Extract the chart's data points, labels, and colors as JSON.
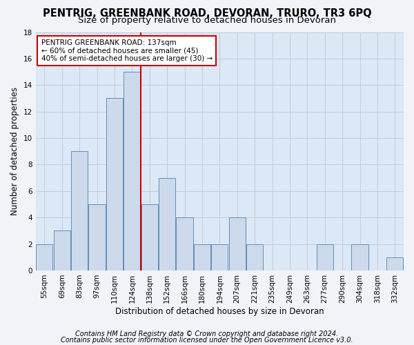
{
  "title1": "PENTRIG, GREENBANK ROAD, DEVORAN, TRURO, TR3 6PQ",
  "title2": "Size of property relative to detached houses in Devoran",
  "xlabel": "Distribution of detached houses by size in Devoran",
  "ylabel": "Number of detached properties",
  "footer1": "Contains HM Land Registry data © Crown copyright and database right 2024.",
  "footer2": "Contains public sector information licensed under the Open Government Licence v3.0.",
  "bin_labels": [
    "55sqm",
    "69sqm",
    "83sqm",
    "97sqm",
    "110sqm",
    "124sqm",
    "138sqm",
    "152sqm",
    "166sqm",
    "180sqm",
    "194sqm",
    "207sqm",
    "221sqm",
    "235sqm",
    "249sqm",
    "263sqm",
    "277sqm",
    "290sqm",
    "304sqm",
    "318sqm",
    "332sqm"
  ],
  "bar_values": [
    2,
    3,
    9,
    5,
    13,
    15,
    5,
    7,
    4,
    2,
    2,
    4,
    2,
    0,
    0,
    0,
    2,
    0,
    2,
    0,
    1
  ],
  "bar_color": "#ccdaeb",
  "bar_edge_color": "#6090bb",
  "highlight_color": "#cc0000",
  "highlight_bin_index": 6,
  "annotation_text": "PENTRIG GREENBANK ROAD: 137sqm\n← 60% of detached houses are smaller (45)\n40% of semi-detached houses are larger (30) →",
  "annotation_box_color": "#ffffff",
  "annotation_border_color": "#cc0000",
  "ylim": [
    0,
    18
  ],
  "yticks": [
    0,
    2,
    4,
    6,
    8,
    10,
    12,
    14,
    16,
    18
  ],
  "grid_color": "#c0ccd8",
  "plot_bg_color": "#dce8f5",
  "fig_bg_color": "#f0f4f8",
  "title1_fontsize": 10.5,
  "title2_fontsize": 9.5,
  "axis_label_fontsize": 8.5,
  "tick_fontsize": 7.5,
  "annotation_fontsize": 7.5,
  "footer_fontsize": 7
}
